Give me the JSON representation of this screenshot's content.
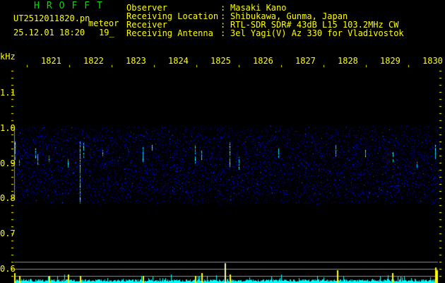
{
  "header": {
    "title": "HROFFT",
    "filename": "UT2512011820.pn",
    "mode": "meteor",
    "datetime": "25.12.01 18:20",
    "count": "19_",
    "labels": [
      "Observer",
      "Receiving Location",
      "Receiver",
      "Receiving Antenna"
    ],
    "values": [
      "Masaki Kano",
      "Shibukawa, Gunma, Japan",
      "RTL-SDR SDR# 43dB L15 103.2MHz CW",
      "3el Yagi(V) Az 330 for Vladivostok"
    ]
  },
  "axis": {
    "y_unit": "kHz",
    "y_ticks": [
      "1.1",
      "1.0",
      "0.9",
      "0.8",
      "0.7",
      "0.6"
    ],
    "time_ticks": [
      "1821",
      "1822",
      "1823",
      "1824",
      "1825",
      "1826",
      "1827",
      "1828",
      "1829",
      "1830"
    ]
  },
  "colors": {
    "text": "#ffff00",
    "title": "#00e000",
    "noise": "#0000c0",
    "histogram": "#00ffff",
    "grid": "#909090"
  }
}
